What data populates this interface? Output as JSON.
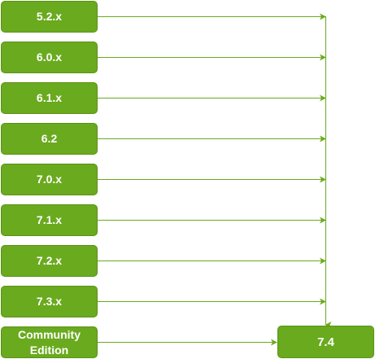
{
  "diagram": {
    "sources": [
      {
        "label": "5.2.x"
      },
      {
        "label": "6.0.x"
      },
      {
        "label": "6.1.x"
      },
      {
        "label": "6.2"
      },
      {
        "label": "7.0.x"
      },
      {
        "label": "7.1.x"
      },
      {
        "label": "7.2.x"
      },
      {
        "label": "7.3.x"
      }
    ],
    "community": {
      "label": "Community\nEdition"
    },
    "target": {
      "label": "7.4"
    },
    "colors": {
      "box_fill": "#6aaa1e",
      "box_stroke": "#5c9216",
      "line": "#6aaa1e",
      "text": "#ffffff"
    }
  }
}
